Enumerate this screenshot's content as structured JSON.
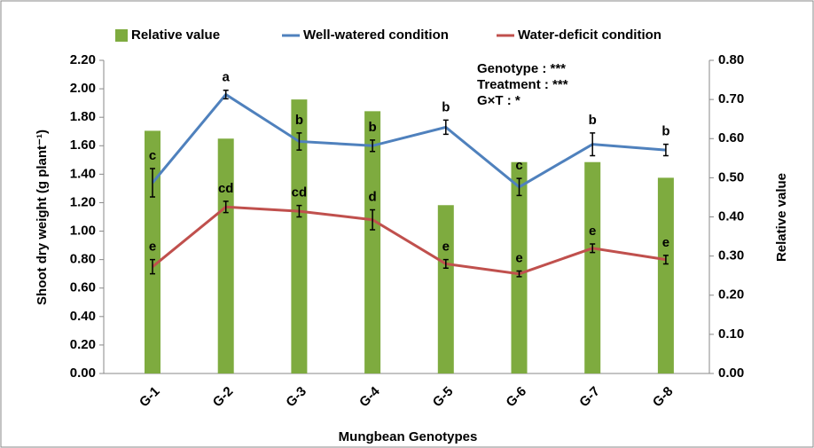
{
  "chart_data": {
    "type": "bar-line",
    "x_label": "Mungbean Genotypes",
    "y_label": "Shoot dry weight (g plant⁻¹)",
    "y2_label": "Relative value",
    "categories": [
      "G-1",
      "G-2",
      "G-3",
      "G-4",
      "G-5",
      "G-6",
      "G-7",
      "G-8"
    ],
    "ylim": [
      0,
      2.2
    ],
    "yticks": [
      {
        "value": 0,
        "label": "0.00"
      },
      {
        "value": 0.2,
        "label": "0.20"
      },
      {
        "value": 0.4,
        "label": "0.40"
      },
      {
        "value": 0.6,
        "label": "0.60"
      },
      {
        "value": 0.8,
        "label": "0.80"
      },
      {
        "value": 1.0,
        "label": "1.00"
      },
      {
        "value": 1.2,
        "label": "1.20"
      },
      {
        "value": 1.4,
        "label": "1.40"
      },
      {
        "value": 1.6,
        "label": "1.60"
      },
      {
        "value": 1.8,
        "label": "1.80"
      },
      {
        "value": 2.0,
        "label": "2.00"
      },
      {
        "value": 2.2,
        "label": "2.20"
      }
    ],
    "y2lim": [
      0,
      0.8
    ],
    "y2ticks": [
      {
        "value": 0,
        "label": "0.00"
      },
      {
        "value": 0.1,
        "label": "0.10"
      },
      {
        "value": 0.2,
        "label": "0.20"
      },
      {
        "value": 0.3,
        "label": "0.30"
      },
      {
        "value": 0.4,
        "label": "0.40"
      },
      {
        "value": 0.5,
        "label": "0.50"
      },
      {
        "value": 0.6,
        "label": "0.60"
      },
      {
        "value": 0.7,
        "label": "0.70"
      },
      {
        "value": 0.8,
        "label": "0.80"
      }
    ],
    "series": [
      {
        "name": "Relative value",
        "type": "bar",
        "axis": "y2",
        "color": "#7eab3f",
        "values": [
          0.62,
          0.6,
          0.7,
          0.67,
          0.43,
          0.54,
          0.54,
          0.5
        ]
      },
      {
        "name": "Well-watered condition",
        "type": "line",
        "color": "#4f81bd",
        "values": [
          1.34,
          1.96,
          1.63,
          1.6,
          1.73,
          1.31,
          1.61,
          1.57
        ],
        "errors": [
          0.1,
          0.03,
          0.06,
          0.04,
          0.05,
          0.06,
          0.08,
          0.04
        ],
        "labels": [
          "c",
          "a",
          "b",
          "b",
          "b",
          "c",
          "b",
          "b"
        ]
      },
      {
        "name": "Water-deficit condition",
        "type": "line",
        "color": "#c0504d",
        "values": [
          0.75,
          1.17,
          1.14,
          1.08,
          0.77,
          0.7,
          0.88,
          0.8
        ],
        "errors": [
          0.05,
          0.04,
          0.04,
          0.07,
          0.03,
          0.02,
          0.03,
          0.03
        ],
        "labels": [
          "e",
          "cd",
          "cd",
          "d",
          "e",
          "e",
          "e",
          "e"
        ]
      }
    ],
    "annotations": [
      "Genotype : ***",
      "Treatment : ***",
      "G×T : *"
    ]
  }
}
